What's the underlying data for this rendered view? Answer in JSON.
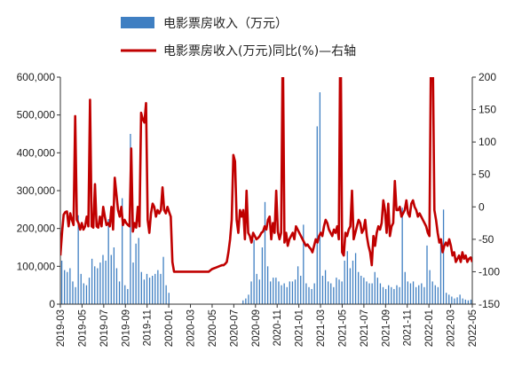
{
  "chart_data": {
    "type": "bar+line",
    "title": "",
    "legend": {
      "placement": "top",
      "bar_label": "电影票房收入（万元）",
      "line_label": "电影票房收入(万元)同比(%)—右轴"
    },
    "colors": {
      "bars": "#3f7fc2",
      "line": "#c00000",
      "axis": "#333333"
    },
    "y_left": {
      "min": 0,
      "max": 600000,
      "ticks": [
        "0",
        "100,000",
        "200,000",
        "300,000",
        "400,000",
        "500,000",
        "600,000"
      ]
    },
    "y_right": {
      "min": -150,
      "max": 200,
      "ticks": [
        "-150",
        "-100",
        "-50",
        "0",
        "50",
        "100",
        "150",
        "200"
      ]
    },
    "x_labels": [
      "2019-03",
      "2019-05",
      "2019-07",
      "2019-09",
      "2019-11",
      "2020-01",
      "2020-03",
      "2020-05",
      "2020-07",
      "2020-09",
      "2020-11",
      "2021-01",
      "2021-03",
      "2021-05",
      "2021-07",
      "2021-09",
      "2021-11",
      "2022-01",
      "2022-03",
      "2022-05"
    ],
    "bar_series": {
      "name": "电影票房收入（万元）",
      "values": [
        115000,
        90000,
        85000,
        95000,
        60000,
        45000,
        235000,
        80000,
        55000,
        50000,
        70000,
        120000,
        100000,
        95000,
        110000,
        130000,
        115000,
        225000,
        130000,
        150000,
        95000,
        60000,
        280000,
        50000,
        40000,
        450000,
        110000,
        160000,
        175000,
        85000,
        65000,
        80000,
        70000,
        75000,
        80000,
        90000,
        80000,
        125000,
        50000,
        30000,
        0,
        0,
        0,
        0,
        0,
        0,
        0,
        0,
        0,
        0,
        0,
        0,
        0,
        0,
        0,
        0,
        0,
        0,
        0,
        0,
        0,
        0,
        0,
        0,
        0,
        0,
        10000,
        15000,
        25000,
        60000,
        170000,
        80000,
        65000,
        150000,
        270000,
        100000,
        60000,
        70000,
        70000,
        60000,
        50000,
        55000,
        45000,
        60000,
        60000,
        65000,
        100000,
        75000,
        210000,
        55000,
        45000,
        40000,
        55000,
        470000,
        560000,
        75000,
        90000,
        60000,
        55000,
        45000,
        70000,
        65000,
        60000,
        115000,
        140000,
        95000,
        115000,
        135000,
        85000,
        75000,
        70000,
        60000,
        55000,
        55000,
        85000,
        70000,
        55000,
        45000,
        40000,
        50000,
        45000,
        40000,
        50000,
        45000,
        255000,
        85000,
        60000,
        55000,
        60000,
        45000,
        50000,
        55000,
        45000,
        155000,
        90000,
        60000,
        50000,
        45000,
        170000,
        250000,
        30000,
        25000,
        20000,
        15000,
        18000,
        25000,
        15000,
        12000,
        10000,
        12000
      ]
    },
    "line_series": {
      "name": "电影票房收入(万元)同比(%)",
      "values": [
        -75,
        -40,
        -12,
        -8,
        -7,
        -30,
        -10,
        -20,
        -28,
        140,
        -20,
        -25,
        -35,
        -25,
        -35,
        -30,
        -15,
        -30,
        165,
        -30,
        -32,
        35,
        -30,
        -32,
        -15,
        -30,
        0,
        -15,
        -28,
        -25,
        -30,
        0,
        -35,
        45,
        20,
        -5,
        -15,
        0,
        -28,
        -20,
        -25,
        -28,
        -30,
        90,
        -38,
        -25,
        -32,
        0,
        -30,
        145,
        135,
        130,
        160,
        -20,
        -40,
        -10,
        5,
        0,
        -15,
        -5,
        -10,
        -5,
        30,
        -5,
        -10,
        0,
        -8,
        -15,
        -85,
        -100,
        -100,
        -100,
        -100,
        -100,
        -100,
        -100,
        -100,
        -100,
        -100,
        -100,
        -100,
        -100,
        -100,
        -100,
        -100,
        -100,
        -100,
        -100,
        -100,
        -100,
        -100,
        -98,
        -96,
        -95,
        -94,
        -93,
        -92,
        -91,
        -90,
        -90,
        -88,
        -85,
        -70,
        -50,
        -20,
        80,
        70,
        -20,
        -40,
        -5,
        -15,
        -5,
        -50,
        25,
        -40,
        -45,
        -55,
        -40,
        -45,
        -50,
        -48,
        -45,
        -40,
        -38,
        -30,
        -35,
        -20,
        -15,
        -50,
        -25,
        -40,
        25,
        -38,
        -50,
        -40,
        260,
        -55,
        -40,
        -60,
        -50,
        -45,
        -40,
        -50,
        -30,
        -35,
        -40,
        -45,
        -50,
        -55,
        -60,
        -58,
        -62,
        -65,
        -70,
        -60,
        -50,
        -55,
        -45,
        -40,
        -45,
        -30,
        -20,
        -25,
        -35,
        -40,
        -45,
        -35,
        -40,
        -30,
        -50,
        300,
        -70,
        -75,
        -40,
        -45,
        -35,
        -30,
        25,
        -50,
        -40,
        -30,
        -20,
        -25,
        -40,
        -35,
        -20,
        -45,
        -60,
        -70,
        -90,
        -45,
        -60,
        -40,
        -30,
        -35,
        -25,
        10,
        -5,
        -40,
        5,
        -45,
        -30,
        -25,
        40,
        -5,
        -5,
        0,
        -15,
        -10,
        -5,
        10,
        -10,
        -15,
        5,
        10,
        0,
        -5,
        -15,
        -10,
        -15,
        -20,
        -25,
        -30,
        -40,
        -45,
        260,
        240,
        -5,
        -20,
        -40,
        -55,
        -50,
        -70,
        -60,
        -55,
        -60,
        -50,
        -60,
        -75,
        -70,
        -85,
        -80,
        -75,
        -85,
        -70,
        -80,
        -75,
        -85,
        -80,
        -78,
        -85
      ]
    }
  }
}
